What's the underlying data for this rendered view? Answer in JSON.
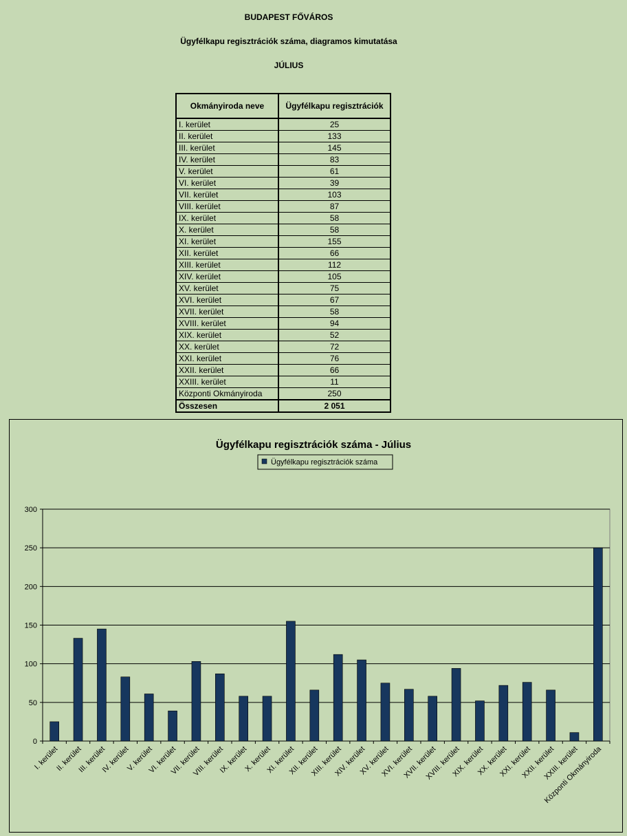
{
  "header": {
    "line1": "BUDAPEST FŐVÁROS",
    "line2": "Ügyfélkapu regisztrációk száma, diagramos kimutatása",
    "line3": "JÚLIUS"
  },
  "table": {
    "col1": "Okmányiroda neve",
    "col2": "Ügyfélkapu regisztrációk",
    "rows": [
      {
        "name": "I. kerület",
        "value": "25"
      },
      {
        "name": "II. kerület",
        "value": "133"
      },
      {
        "name": "III. kerület",
        "value": "145"
      },
      {
        "name": "IV. kerület",
        "value": "83"
      },
      {
        "name": "V. kerület",
        "value": "61"
      },
      {
        "name": "VI. kerület",
        "value": "39"
      },
      {
        "name": "VII. kerület",
        "value": "103"
      },
      {
        "name": "VIII. kerület",
        "value": "87"
      },
      {
        "name": "IX. kerület",
        "value": "58"
      },
      {
        "name": "X. kerület",
        "value": "58"
      },
      {
        "name": "XI. kerület",
        "value": "155"
      },
      {
        "name": "XII. kerület",
        "value": "66"
      },
      {
        "name": "XIII. kerület",
        "value": "112"
      },
      {
        "name": "XIV. kerület",
        "value": "105"
      },
      {
        "name": "XV. kerület",
        "value": "75"
      },
      {
        "name": "XVI. kerület",
        "value": "67"
      },
      {
        "name": "XVII. kerület",
        "value": "58"
      },
      {
        "name": "XVIII. kerület",
        "value": "94"
      },
      {
        "name": "XIX. kerület",
        "value": "52"
      },
      {
        "name": "XX. kerület",
        "value": "72"
      },
      {
        "name": "XXI. kerület",
        "value": "76"
      },
      {
        "name": "XXII. kerület",
        "value": "66"
      },
      {
        "name": "XXIII. kerület",
        "value": "11"
      },
      {
        "name": "Központi Okmányiroda",
        "value": "250"
      }
    ],
    "total_label": "Összesen",
    "total_value": "2 051"
  },
  "chart_data": {
    "type": "bar",
    "title": "Ügyfélkapu regisztrációk száma - Július",
    "categories": [
      "I. kerület",
      "II. kerület",
      "III. kerület",
      "IV. kerület",
      "V. kerület",
      "VI. kerület",
      "VII. kerület",
      "VIII. kerület",
      "IX. kerület",
      "X. kerület",
      "XI. kerület",
      "XII. kerület",
      "XIII. kerület",
      "XIV. kerület",
      "XV. kerület",
      "XVI. kerület",
      "XVII. kerület",
      "XVIII. kerület",
      "XIX. kerület",
      "XX. kerület",
      "XXI. kerület",
      "XXII. kerület",
      "XXIII. kerület",
      "Központi Okmányiroda"
    ],
    "series": [
      {
        "name": "Ügyfélkapu regisztrációk száma",
        "values": [
          25,
          133,
          145,
          83,
          61,
          39,
          103,
          87,
          58,
          58,
          155,
          66,
          112,
          105,
          75,
          67,
          58,
          94,
          52,
          72,
          76,
          66,
          11,
          250
        ]
      }
    ],
    "ylim": [
      0,
      300
    ],
    "yticks": [
      "0",
      "50",
      "100",
      "150",
      "200",
      "250",
      "300"
    ],
    "grid": true,
    "legend": "top-center",
    "colors": {
      "bar": "#17375e",
      "plot_bg": "#c6d9b4"
    }
  }
}
